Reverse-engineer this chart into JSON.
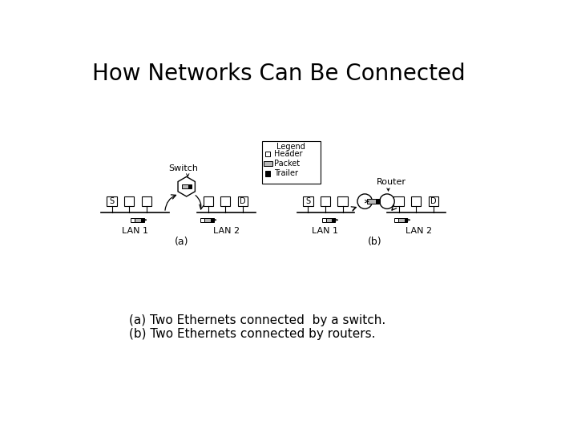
{
  "title": "How Networks Can Be Connected",
  "title_fontsize": 20,
  "caption_line1": "(a) Two Ethernets connected  by a switch.",
  "caption_line2": "(b) Two Ethernets connected by routers.",
  "caption_fontsize": 11,
  "bg_color": "#ffffff",
  "fg_color": "#000000",
  "legend_title": "Legend",
  "diagram_fontsize": 7,
  "label_fontsize": 8
}
